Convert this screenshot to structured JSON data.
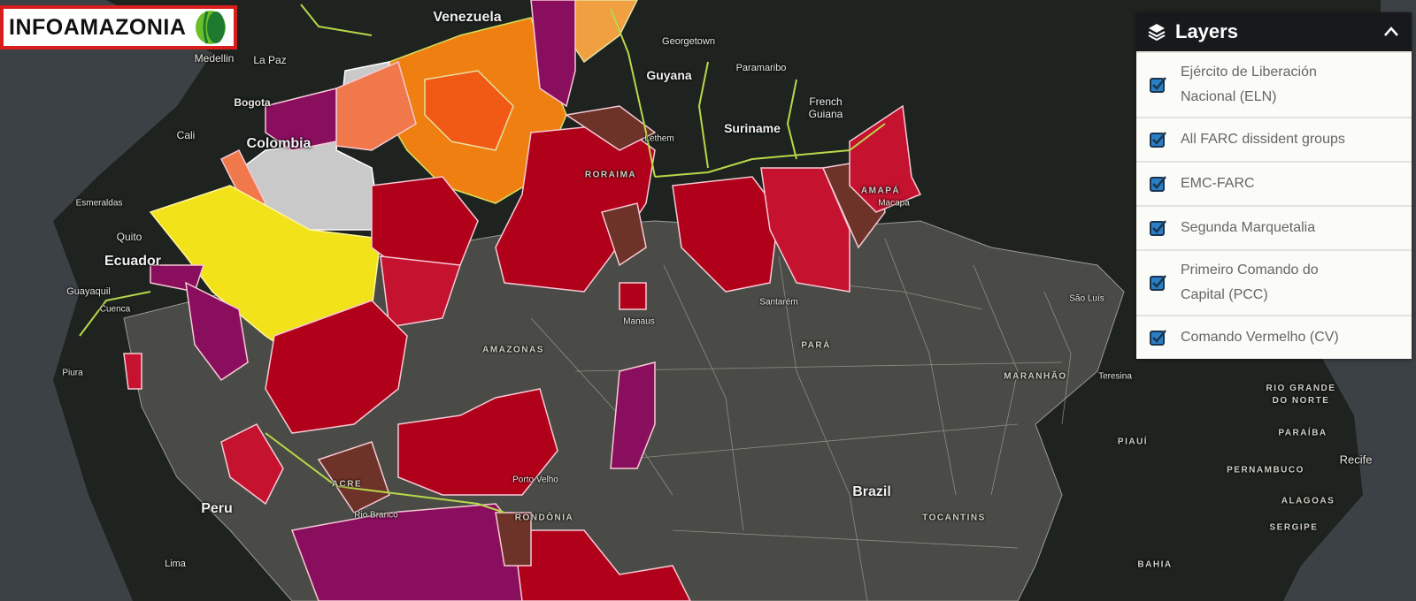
{
  "logo": {
    "text": "INFOAMAZONIA"
  },
  "layers_panel": {
    "title": "Layers",
    "icon": "layers-icon",
    "collapse_icon": "chevron-up-icon",
    "items": [
      {
        "label": "Ejército de Liberación Nacional (ELN)",
        "checked": true
      },
      {
        "label": "All FARC dissident groups",
        "checked": true
      },
      {
        "label": "EMC-FARC",
        "checked": true
      },
      {
        "label": "Segunda Marquetalia",
        "checked": true
      },
      {
        "label": "Primeiro Comando do Capital (PCC)",
        "checked": true
      },
      {
        "label": "Comando Vermelho (CV)",
        "checked": true
      }
    ]
  },
  "map": {
    "countries": [
      "Venezuela",
      "Guyana",
      "Suriname",
      "French Guiana",
      "Colombia",
      "Ecuador",
      "Peru",
      "Brazil"
    ],
    "cities": [
      "Georgetown",
      "Paramaribo",
      "Medellin",
      "La Paz",
      "Bogota",
      "Cali",
      "Esmeraldas",
      "Quito",
      "Guayaquil",
      "Cuenca",
      "Piura",
      "Lima",
      "Lethem",
      "Macapá",
      "Manaus",
      "Santarém",
      "São Luís",
      "Teresina",
      "Porto Velho",
      "Rio Branco",
      "Recife"
    ],
    "states": [
      "RORAIMA",
      "AMAPÁ",
      "AMAZONAS",
      "PARÁ",
      "MARANHÃO",
      "PIAUÍ",
      "RIO GRANDE DO NORTE",
      "PARAÍBA",
      "PERNAMBUCO",
      "ALAGOAS",
      "SERGIPE",
      "BAHIA",
      "ACRE",
      "RONDÔNIA",
      "TOCANTINS"
    ],
    "colors": {
      "ocean": "#3c4146",
      "land": "#1e231f",
      "municipalities": "#4a4b46",
      "borders": "#b8d84a",
      "red": "#b0001a",
      "crimson": "#c4122f",
      "brown": "#6e3328",
      "purple": "#8a0e5e",
      "orange": "#f07f12",
      "dark_orange": "#f05a14",
      "yellow": "#f2e21a",
      "light_gray": "#c9c9c9",
      "salmon": "#f0784a"
    }
  }
}
